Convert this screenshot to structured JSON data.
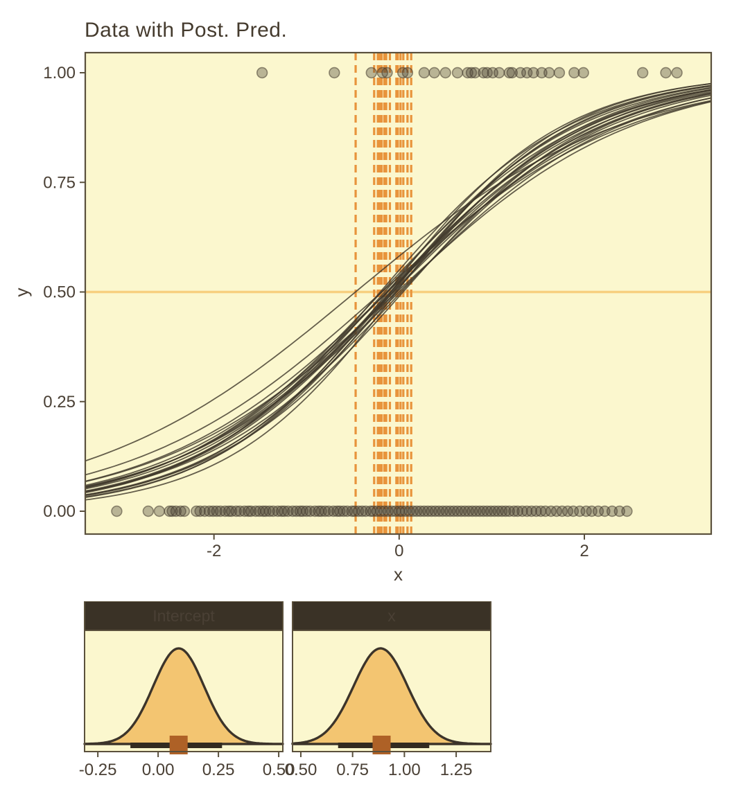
{
  "figure": {
    "background": "#FFFFFF"
  },
  "colors": {
    "panel_bg": "#FBF7CE",
    "panel_border": "#5A503C",
    "axis_text": "#4A4035",
    "title_text": "#453B2E",
    "curve": "#3F372B",
    "point_fill": "#50483A",
    "point_stroke": "#453D30",
    "vline_orange": "#E8943C",
    "hline_orange": "#F7CF7F",
    "density_fill": "#F3C571",
    "density_stroke": "#3C342A",
    "strip_bg": "#3A3226",
    "strip_text": "#F3EDD2",
    "interval_bar": "#332B20",
    "point_estimate_square": "#AE6126"
  },
  "chart_data": [
    {
      "id": "posterior-predictive",
      "type": "line",
      "title": "Data with Post. Pred.",
      "xlabel": "x",
      "ylabel": "y",
      "x_domain": [
        -3.39,
        3.37
      ],
      "y_domain": [
        -0.05,
        1.05
      ],
      "x_tick_values": [
        -2,
        0,
        2
      ],
      "x_tick_labels": [
        "-2",
        "0",
        "2"
      ],
      "y_tick_values": [
        0,
        0.25,
        0.5,
        0.75,
        1
      ],
      "y_tick_labels": [
        "0.00",
        "0.25",
        "0.50",
        "0.75",
        "1.00"
      ],
      "grid": false,
      "legend": "none",
      "hline_y": 0.5,
      "vline_xs": [
        -0.47,
        -0.27,
        -0.23,
        -0.21,
        -0.19,
        -0.16,
        -0.14,
        -0.1,
        -0.03,
        -0.015,
        0.015,
        0.045,
        0.09,
        0.13
      ],
      "posterior_draws_intercept_slope": [
        [
          0.02,
          0.78
        ],
        [
          0.05,
          0.85
        ],
        [
          0.09,
          0.92
        ],
        [
          0.12,
          0.88
        ],
        [
          0.15,
          0.95
        ],
        [
          -0.02,
          0.9
        ],
        [
          0.07,
          1.02
        ],
        [
          0.1,
          0.8
        ],
        [
          0.04,
          0.97
        ],
        [
          0.13,
          1.05
        ],
        [
          0.0,
          0.83
        ],
        [
          0.17,
          0.9
        ],
        [
          0.06,
          0.88
        ],
        [
          0.09,
          1.0
        ],
        [
          -0.04,
          0.95
        ],
        [
          0.2,
          0.98
        ],
        [
          0.11,
          0.85
        ],
        [
          0.03,
          1.08
        ],
        [
          0.14,
          0.75
        ],
        [
          0.08,
          0.93
        ],
        [
          0.33,
          0.7
        ]
      ],
      "points_y1_x": [
        -1.48,
        -0.7,
        -0.3,
        -0.18,
        -0.13,
        0.04,
        0.09,
        0.27,
        0.38,
        0.5,
        0.63,
        0.74,
        0.78,
        0.82,
        0.91,
        0.95,
        1.01,
        1.08,
        1.19,
        1.22,
        1.31,
        1.38,
        1.45,
        1.54,
        1.62,
        1.73,
        1.89,
        1.99,
        2.63,
        2.88,
        3.0
      ],
      "points_y0_x": [
        -3.05,
        -2.71,
        -2.59,
        -2.48,
        -2.45,
        -2.41,
        -2.36,
        -2.32,
        -2.19,
        -2.15,
        -2.1,
        -2.05,
        -2.01,
        -1.97,
        -1.93,
        -1.88,
        -1.84,
        -1.81,
        -1.76,
        -1.72,
        -1.67,
        -1.63,
        -1.6,
        -1.55,
        -1.51,
        -1.47,
        -1.44,
        -1.4,
        -1.36,
        -1.31,
        -1.27,
        -1.24,
        -1.2,
        -1.15,
        -1.11,
        -1.07,
        -1.04,
        -1.0,
        -0.96,
        -0.91,
        -0.87,
        -0.84,
        -0.8,
        -0.76,
        -0.71,
        -0.67,
        -0.64,
        -0.6,
        -0.56,
        -0.51,
        -0.48,
        -0.44,
        -0.4,
        -0.36,
        -0.31,
        -0.28,
        -0.24,
        -0.2,
        -0.16,
        -0.12,
        -0.08,
        -0.04,
        0.0,
        0.03,
        0.07,
        0.11,
        0.15,
        0.19,
        0.23,
        0.27,
        0.31,
        0.35,
        0.39,
        0.43,
        0.47,
        0.51,
        0.55,
        0.59,
        0.63,
        0.67,
        0.71,
        0.75,
        0.79,
        0.83,
        0.87,
        0.91,
        0.95,
        0.99,
        1.03,
        1.07,
        1.11,
        1.15,
        1.19,
        1.24,
        1.28,
        1.33,
        1.38,
        1.43,
        1.48,
        1.53,
        1.58,
        1.64,
        1.7,
        1.76,
        1.82,
        1.88,
        1.95,
        2.02,
        2.08,
        2.15,
        2.22,
        2.3,
        2.38,
        2.46
      ]
    },
    {
      "id": "intercept-density",
      "type": "area",
      "title": "Intercept",
      "x_domain": [
        -0.305,
        0.517
      ],
      "x_tick_values": [
        -0.25,
        0,
        0.25,
        0.5
      ],
      "x_tick_labels": [
        "-0.25",
        "0.00",
        "0.25",
        "0.50"
      ],
      "mean": 0.085,
      "sd": 0.105,
      "interval": [
        -0.115,
        0.265
      ],
      "point_estimate": 0.085
    },
    {
      "id": "x-density",
      "type": "area",
      "title": "x",
      "x_domain": [
        0.46,
        1.417
      ],
      "x_tick_values": [
        0.5,
        0.75,
        1,
        1.25
      ],
      "x_tick_labels": [
        "0.50",
        "0.75",
        "1.00",
        "1.25"
      ],
      "mean": 0.885,
      "sd": 0.13,
      "interval": [
        0.68,
        1.12
      ],
      "point_estimate": 0.89
    }
  ]
}
